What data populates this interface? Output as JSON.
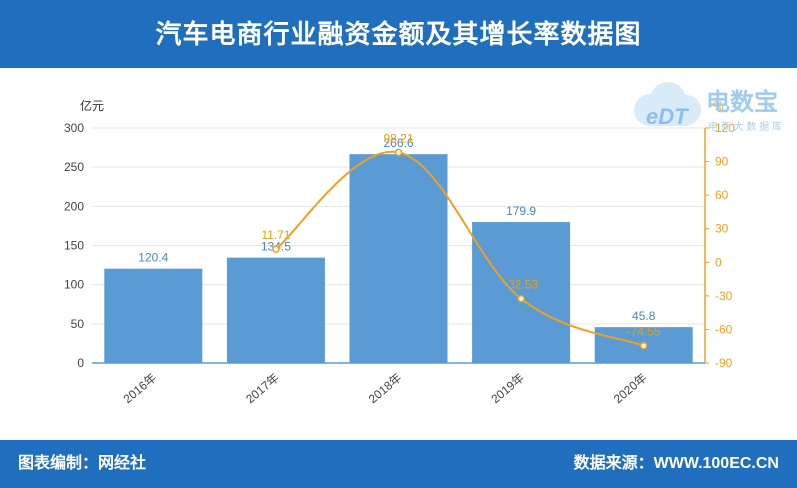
{
  "header": {
    "title": "汽车电商行业融资金额及其增长率数据图"
  },
  "footer": {
    "left": "图表编制：网经社",
    "right": "数据来源：WWW.100EC.CN"
  },
  "logo": {
    "mark": "eDT",
    "name": "电数宝",
    "sub": "电 商 大 数 据 库"
  },
  "colors": {
    "bar": "#5b9bd5",
    "line": "#f0a020",
    "header": "#1f6fbe",
    "bar_label": "#4a86c5",
    "rate_label": "#e8a010"
  },
  "chart_data": {
    "type": "bar",
    "categories": [
      "2016年",
      "2017年",
      "2018年",
      "2019年",
      "2020年"
    ],
    "series": [
      {
        "values": [
          120.4,
          134.5,
          266.6,
          179.9,
          45.8
        ],
        "type": "bar",
        "axis": "left"
      },
      {
        "values": [
          null,
          11.71,
          98.21,
          -32.53,
          -74.55
        ],
        "type": "line",
        "axis": "right"
      }
    ],
    "left_axis": {
      "unit": "亿元",
      "range": [
        0,
        300
      ],
      "ticks": [
        "0",
        "50",
        "100",
        "150",
        "200",
        "250",
        "300"
      ]
    },
    "right_axis": {
      "unit": "%",
      "range": [
        -90,
        120
      ],
      "ticks": [
        "-90",
        "-60",
        "-30",
        "0",
        "30",
        "60",
        "90",
        "120"
      ]
    },
    "bar_labels": [
      "120.4",
      "134.5",
      "266.6",
      "179.9",
      "45.8"
    ],
    "rate_labels": [
      "",
      "11.71",
      "98.21",
      "-32.53",
      "-74.55"
    ],
    "grid": true
  }
}
